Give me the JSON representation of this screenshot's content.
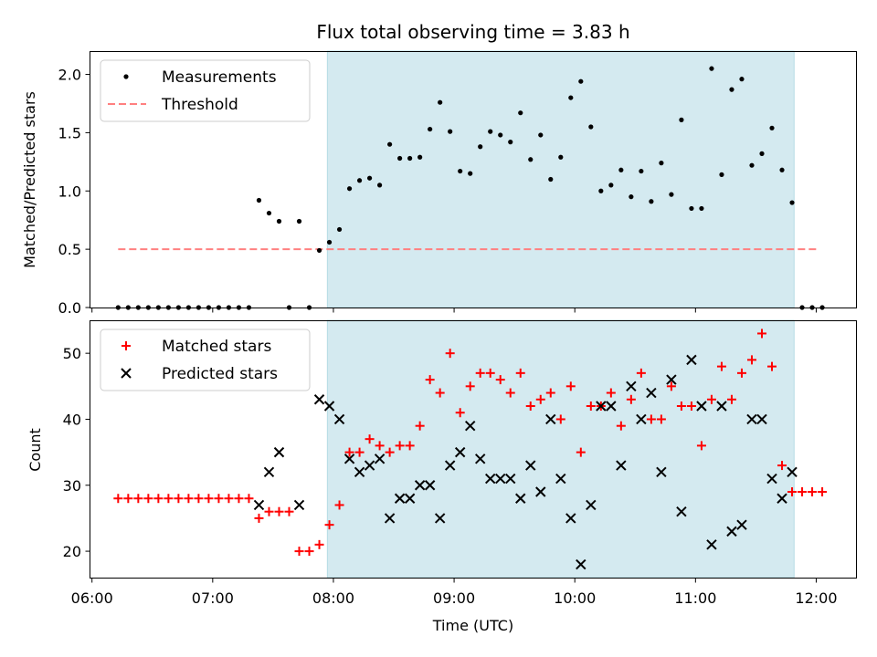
{
  "title": "Flux total observing time = 3.83 h",
  "xlabel": "Time (UTC)",
  "x_ticks": [
    "06:00",
    "07:00",
    "08:00",
    "09:00",
    "10:00",
    "11:00",
    "12:00"
  ],
  "colors": {
    "measurements": "#000000",
    "threshold": "#ff8080",
    "matched": "#ff0000",
    "predicted": "#000000",
    "window": "#d4eaf0"
  },
  "chart_data": [
    {
      "type": "scatter",
      "ylabel": "Matched/Predicted stars",
      "ylim": [
        0,
        2.2
      ],
      "y_ticks": [
        "0.0",
        "0.5",
        "1.0",
        "1.5",
        "2.0"
      ],
      "xlim": [
        "05:59",
        "12:20"
      ],
      "legend": {
        "placement": "top-left",
        "entries": [
          "Measurements",
          "Threshold"
        ]
      },
      "observing_window": [
        "07:57",
        "11:49"
      ],
      "threshold": {
        "name": "Threshold",
        "value": 0.5,
        "x": [
          "06:13",
          "12:00"
        ]
      },
      "series": [
        {
          "name": "Measurements",
          "points": [
            [
              "06:13",
              0
            ],
            [
              "06:18",
              0
            ],
            [
              "06:23",
              0
            ],
            [
              "06:28",
              0
            ],
            [
              "06:33",
              0
            ],
            [
              "06:38",
              0
            ],
            [
              "06:43",
              0
            ],
            [
              "06:48",
              0
            ],
            [
              "06:53",
              0
            ],
            [
              "06:58",
              0
            ],
            [
              "07:03",
              0
            ],
            [
              "07:08",
              0
            ],
            [
              "07:13",
              0
            ],
            [
              "07:18",
              0
            ],
            [
              "07:23",
              0.92
            ],
            [
              "07:28",
              0.81
            ],
            [
              "07:33",
              0.74
            ],
            [
              "07:38",
              0
            ],
            [
              "07:43",
              0.74
            ],
            [
              "07:48",
              0
            ],
            [
              "07:53",
              0.49
            ],
            [
              "07:58",
              0.56
            ],
            [
              "08:03",
              0.67
            ],
            [
              "08:08",
              1.02
            ],
            [
              "08:13",
              1.09
            ],
            [
              "08:18",
              1.11
            ],
            [
              "08:23",
              1.05
            ],
            [
              "08:28",
              1.4
            ],
            [
              "08:33",
              1.28
            ],
            [
              "08:38",
              1.28
            ],
            [
              "08:43",
              1.29
            ],
            [
              "08:48",
              1.53
            ],
            [
              "08:53",
              1.76
            ],
            [
              "08:58",
              1.51
            ],
            [
              "09:03",
              1.17
            ],
            [
              "09:08",
              1.15
            ],
            [
              "09:13",
              1.38
            ],
            [
              "09:18",
              1.51
            ],
            [
              "09:23",
              1.48
            ],
            [
              "09:28",
              1.42
            ],
            [
              "09:33",
              1.67
            ],
            [
              "09:38",
              1.27
            ],
            [
              "09:43",
              1.48
            ],
            [
              "09:48",
              1.1
            ],
            [
              "09:53",
              1.29
            ],
            [
              "09:58",
              1.8
            ],
            [
              "10:03",
              1.94
            ],
            [
              "10:08",
              1.55
            ],
            [
              "10:13",
              1.0
            ],
            [
              "10:18",
              1.05
            ],
            [
              "10:23",
              1.18
            ],
            [
              "10:28",
              0.95
            ],
            [
              "10:33",
              1.17
            ],
            [
              "10:38",
              0.91
            ],
            [
              "10:43",
              1.24
            ],
            [
              "10:48",
              0.97
            ],
            [
              "10:53",
              1.61
            ],
            [
              "10:58",
              0.85
            ],
            [
              "11:03",
              0.85
            ],
            [
              "11:08",
              2.05
            ],
            [
              "11:13",
              1.14
            ],
            [
              "11:18",
              1.87
            ],
            [
              "11:23",
              1.96
            ],
            [
              "11:28",
              1.22
            ],
            [
              "11:33",
              1.32
            ],
            [
              "11:38",
              1.54
            ],
            [
              "11:43",
              1.18
            ],
            [
              "11:48",
              0.9
            ],
            [
              "11:53",
              0
            ],
            [
              "11:58",
              0
            ],
            [
              "12:03",
              0
            ]
          ]
        }
      ]
    },
    {
      "type": "scatter",
      "ylabel": "Count",
      "ylim": [
        16,
        55
      ],
      "y_ticks": [
        "20",
        "30",
        "40",
        "50"
      ],
      "xlim": [
        "05:59",
        "12:20"
      ],
      "legend": {
        "placement": "top-left",
        "entries": [
          "Matched stars",
          "Predicted stars"
        ]
      },
      "observing_window": [
        "07:57",
        "11:49"
      ],
      "series": [
        {
          "name": "Matched stars",
          "points": [
            [
              "06:13",
              28
            ],
            [
              "06:18",
              28
            ],
            [
              "06:23",
              28
            ],
            [
              "06:28",
              28
            ],
            [
              "06:33",
              28
            ],
            [
              "06:38",
              28
            ],
            [
              "06:43",
              28
            ],
            [
              "06:48",
              28
            ],
            [
              "06:53",
              28
            ],
            [
              "06:58",
              28
            ],
            [
              "07:03",
              28
            ],
            [
              "07:08",
              28
            ],
            [
              "07:13",
              28
            ],
            [
              "07:18",
              28
            ],
            [
              "07:23",
              25
            ],
            [
              "07:28",
              26
            ],
            [
              "07:33",
              26
            ],
            [
              "07:38",
              26
            ],
            [
              "07:43",
              20
            ],
            [
              "07:48",
              20
            ],
            [
              "07:53",
              21
            ],
            [
              "07:58",
              24
            ],
            [
              "08:03",
              27
            ],
            [
              "08:08",
              35
            ],
            [
              "08:13",
              35
            ],
            [
              "08:18",
              37
            ],
            [
              "08:23",
              36
            ],
            [
              "08:28",
              35
            ],
            [
              "08:33",
              36
            ],
            [
              "08:38",
              36
            ],
            [
              "08:43",
              39
            ],
            [
              "08:48",
              46
            ],
            [
              "08:53",
              44
            ],
            [
              "08:58",
              50
            ],
            [
              "09:03",
              41
            ],
            [
              "09:08",
              45
            ],
            [
              "09:13",
              47
            ],
            [
              "09:18",
              47
            ],
            [
              "09:23",
              46
            ],
            [
              "09:28",
              44
            ],
            [
              "09:33",
              47
            ],
            [
              "09:38",
              42
            ],
            [
              "09:43",
              43
            ],
            [
              "09:48",
              44
            ],
            [
              "09:53",
              40
            ],
            [
              "09:58",
              45
            ],
            [
              "10:03",
              35
            ],
            [
              "10:08",
              42
            ],
            [
              "10:13",
              42
            ],
            [
              "10:18",
              44
            ],
            [
              "10:23",
              39
            ],
            [
              "10:28",
              43
            ],
            [
              "10:33",
              47
            ],
            [
              "10:38",
              40
            ],
            [
              "10:43",
              40
            ],
            [
              "10:48",
              45
            ],
            [
              "10:53",
              42
            ],
            [
              "10:58",
              42
            ],
            [
              "11:03",
              36
            ],
            [
              "11:08",
              43
            ],
            [
              "11:13",
              48
            ],
            [
              "11:18",
              43
            ],
            [
              "11:23",
              47
            ],
            [
              "11:28",
              49
            ],
            [
              "11:33",
              53
            ],
            [
              "11:38",
              48
            ],
            [
              "11:43",
              33
            ],
            [
              "11:48",
              29
            ],
            [
              "11:53",
              29
            ],
            [
              "11:58",
              29
            ],
            [
              "12:03",
              29
            ]
          ]
        },
        {
          "name": "Predicted stars",
          "points": [
            [
              "07:23",
              27
            ],
            [
              "07:28",
              32
            ],
            [
              "07:33",
              35
            ],
            [
              "07:43",
              27
            ],
            [
              "07:53",
              43
            ],
            [
              "07:58",
              42
            ],
            [
              "08:03",
              40
            ],
            [
              "08:08",
              34
            ],
            [
              "08:13",
              32
            ],
            [
              "08:18",
              33
            ],
            [
              "08:23",
              34
            ],
            [
              "08:28",
              25
            ],
            [
              "08:33",
              28
            ],
            [
              "08:38",
              28
            ],
            [
              "08:43",
              30
            ],
            [
              "08:48",
              30
            ],
            [
              "08:53",
              25
            ],
            [
              "08:58",
              33
            ],
            [
              "09:03",
              35
            ],
            [
              "09:08",
              39
            ],
            [
              "09:13",
              34
            ],
            [
              "09:18",
              31
            ],
            [
              "09:23",
              31
            ],
            [
              "09:28",
              31
            ],
            [
              "09:33",
              28
            ],
            [
              "09:38",
              33
            ],
            [
              "09:43",
              29
            ],
            [
              "09:48",
              40
            ],
            [
              "09:53",
              31
            ],
            [
              "09:58",
              25
            ],
            [
              "10:03",
              18
            ],
            [
              "10:08",
              27
            ],
            [
              "10:13",
              42
            ],
            [
              "10:18",
              42
            ],
            [
              "10:23",
              33
            ],
            [
              "10:28",
              45
            ],
            [
              "10:33",
              40
            ],
            [
              "10:38",
              44
            ],
            [
              "10:43",
              32
            ],
            [
              "10:48",
              46
            ],
            [
              "10:53",
              26
            ],
            [
              "10:58",
              49
            ],
            [
              "11:03",
              42
            ],
            [
              "11:08",
              21
            ],
            [
              "11:13",
              42
            ],
            [
              "11:18",
              23
            ],
            [
              "11:23",
              24
            ],
            [
              "11:28",
              40
            ],
            [
              "11:33",
              40
            ],
            [
              "11:38",
              31
            ],
            [
              "11:43",
              28
            ],
            [
              "11:48",
              32
            ]
          ]
        }
      ]
    }
  ]
}
